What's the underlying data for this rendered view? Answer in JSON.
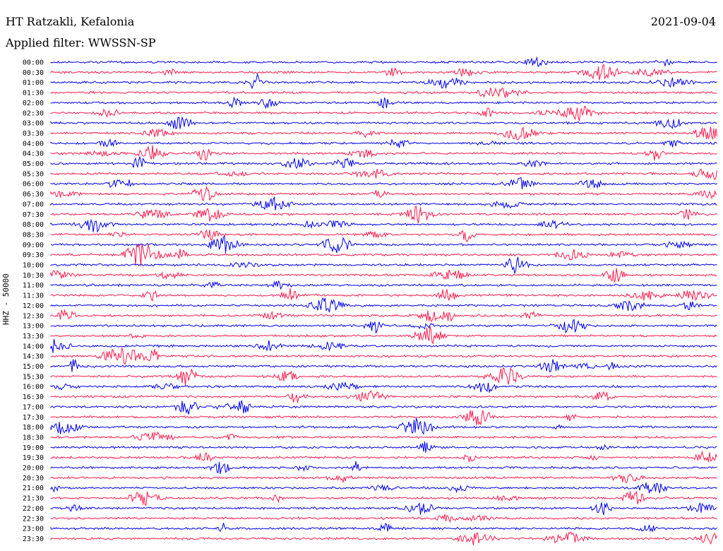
{
  "header": {
    "station": "HT Ratzakli, Kefalonia",
    "date": "2021-09-04",
    "filter": "Applied filter: WWSSN-SP"
  },
  "axis": {
    "channel_label": "HHZ - 50000"
  },
  "colors": {
    "trace_a": "#0000ee",
    "trace_b": "#ff1a4d"
  },
  "traces": {
    "times": [
      "00:00",
      "00:30",
      "01:00",
      "01:30",
      "02:00",
      "02:30",
      "03:00",
      "03:30",
      "04:00",
      "04:30",
      "05:00",
      "05:30",
      "06:00",
      "06:30",
      "07:00",
      "07:30",
      "08:00",
      "08:30",
      "09:00",
      "09:30",
      "10:00",
      "10:30",
      "11:00",
      "11:30",
      "12:00",
      "12:30",
      "13:00",
      "13:30",
      "14:00",
      "14:30",
      "15:00",
      "15:30",
      "16:00",
      "16:30",
      "17:00",
      "17:30",
      "18:00",
      "18:30",
      "19:00",
      "19:30",
      "20:00",
      "20:30",
      "21:00",
      "21:30",
      "22:00",
      "22:30",
      "23:00",
      "23:30"
    ]
  }
}
